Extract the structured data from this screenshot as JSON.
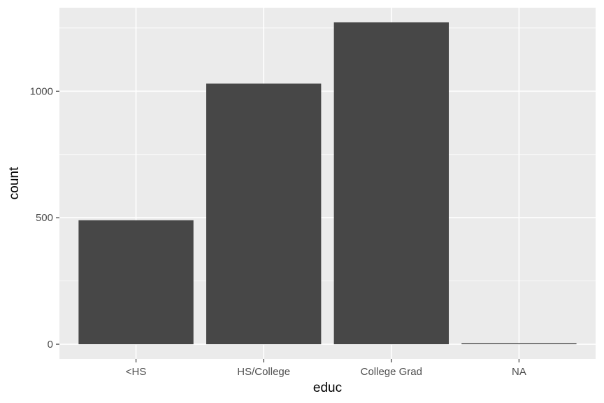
{
  "chart_data": {
    "type": "bar",
    "title": "",
    "xlabel": "educ",
    "ylabel": "count",
    "categories": [
      "<HS",
      "HS/College",
      "College Grad",
      "NA"
    ],
    "values": [
      490,
      1030,
      1272,
      4
    ],
    "ylim": [
      -58,
      1330
    ],
    "yticks": [
      0,
      500,
      1000
    ],
    "ytick_labels": [
      "0",
      "500",
      "1000"
    ],
    "grid": true,
    "legend": "none",
    "colors": {
      "panel": "#ebebeb",
      "grid_major": "#ffffff",
      "bar": "#474747",
      "tick_text": "#4d4d4d",
      "tick_mark": "#333333"
    }
  }
}
